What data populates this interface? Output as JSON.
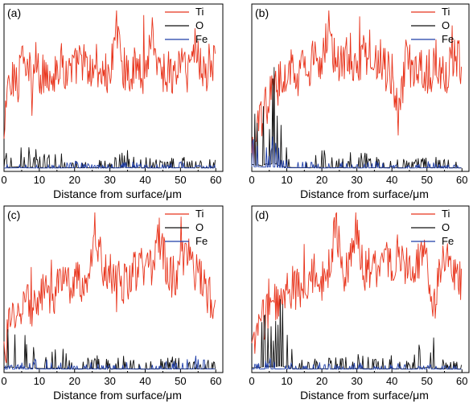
{
  "figure": {
    "panels": [
      {
        "label": "(a)"
      },
      {
        "label": "(b)"
      },
      {
        "label": "(c)"
      },
      {
        "label": "(d)"
      }
    ]
  },
  "chart_data": [
    {
      "type": "line",
      "panel_label": "(a)",
      "xlabel": "Distance from surface/μm",
      "ylabel": "",
      "xlim": [
        0,
        62
      ],
      "xticks": [
        0,
        10,
        20,
        30,
        40,
        50,
        60
      ],
      "grid": false,
      "legend_position": "top-right",
      "series": [
        {
          "name": "Ti",
          "color": "#e8341c",
          "x": [
            0,
            1,
            2,
            3,
            4,
            5,
            6,
            7,
            8,
            9,
            10,
            12,
            14,
            16,
            18,
            20,
            22,
            24,
            26,
            28,
            30,
            32,
            34,
            36,
            38,
            40,
            42,
            44,
            46,
            48,
            50,
            52,
            54,
            56,
            58,
            60
          ],
          "values": [
            0.15,
            0.55,
            0.48,
            0.62,
            0.5,
            0.88,
            0.52,
            0.66,
            0.45,
            0.7,
            0.55,
            0.62,
            0.58,
            0.66,
            0.6,
            0.62,
            0.7,
            0.58,
            0.65,
            0.6,
            0.56,
            0.9,
            0.62,
            0.6,
            0.66,
            0.58,
            0.88,
            0.6,
            0.62,
            0.56,
            0.68,
            0.6,
            0.78,
            0.64,
            0.58,
            0.7
          ]
        },
        {
          "name": "O",
          "color": "#111111",
          "x": [
            0,
            2,
            4,
            6,
            8,
            10,
            15,
            20,
            25,
            30,
            35,
            40,
            45,
            50,
            55,
            60
          ],
          "values": [
            0.03,
            0.06,
            0.08,
            0.05,
            0.06,
            0.04,
            0.05,
            0.02,
            0.03,
            0.02,
            0.05,
            0.03,
            0.02,
            0.04,
            0.02,
            0.03
          ]
        },
        {
          "name": "Fe",
          "color": "#1f3ea8",
          "x": [
            0,
            5,
            10,
            15,
            20,
            25,
            30,
            35,
            40,
            45,
            50,
            55,
            60
          ],
          "values": [
            0.01,
            0.02,
            0.01,
            0.01,
            0.02,
            0.01,
            0.01,
            0.02,
            0.01,
            0.01,
            0.02,
            0.01,
            0.01
          ]
        }
      ]
    },
    {
      "type": "line",
      "panel_label": "(b)",
      "xlabel": "Distance from surface/μm",
      "ylabel": "",
      "xlim": [
        0,
        62
      ],
      "xticks": [
        0,
        10,
        20,
        30,
        40,
        50,
        60
      ],
      "grid": false,
      "legend_position": "top-right",
      "series": [
        {
          "name": "Ti",
          "color": "#e8341c",
          "x": [
            0,
            2,
            4,
            6,
            8,
            10,
            12,
            14,
            16,
            18,
            20,
            22,
            24,
            26,
            28,
            30,
            32,
            34,
            36,
            38,
            40,
            42,
            44,
            46,
            48,
            50,
            52,
            54,
            56,
            58,
            60
          ],
          "values": [
            0.05,
            0.25,
            0.4,
            0.48,
            0.55,
            0.6,
            0.62,
            0.66,
            0.58,
            0.7,
            0.62,
            0.95,
            0.62,
            0.66,
            0.72,
            0.6,
            0.74,
            0.64,
            0.7,
            0.62,
            0.6,
            0.3,
            0.68,
            0.62,
            0.66,
            0.58,
            0.7,
            0.62,
            0.6,
            0.74,
            0.62
          ]
        },
        {
          "name": "O",
          "color": "#111111",
          "x": [
            0,
            1,
            2,
            3,
            4,
            5,
            6,
            7,
            8,
            9,
            10,
            12,
            15,
            20,
            25,
            30,
            35,
            40,
            45,
            50,
            55,
            60
          ],
          "values": [
            0.25,
            0.18,
            0.2,
            0.14,
            0.28,
            0.22,
            0.3,
            0.26,
            0.15,
            0.1,
            0.05,
            0.04,
            0.03,
            0.05,
            0.03,
            0.05,
            0.03,
            0.04,
            0.02,
            0.04,
            0.03,
            0.02
          ]
        },
        {
          "name": "Fe",
          "color": "#1f3ea8",
          "x": [
            0,
            2,
            4,
            6,
            8,
            10,
            15,
            20,
            25,
            30,
            35,
            40,
            45,
            50,
            55,
            60
          ],
          "values": [
            0.08,
            0.1,
            0.06,
            0.09,
            0.05,
            0.02,
            0.02,
            0.01,
            0.02,
            0.01,
            0.02,
            0.01,
            0.01,
            0.02,
            0.01,
            0.01
          ]
        }
      ]
    },
    {
      "type": "line",
      "panel_label": "(c)",
      "xlabel": "Distance from surface/μm",
      "ylabel": "",
      "xlim": [
        0,
        62
      ],
      "xticks": [
        0,
        10,
        20,
        30,
        40,
        50,
        60
      ],
      "grid": false,
      "legend_position": "top-right",
      "series": [
        {
          "name": "Ti",
          "color": "#e8341c",
          "x": [
            0,
            2,
            4,
            6,
            8,
            10,
            12,
            14,
            16,
            18,
            20,
            22,
            24,
            26,
            28,
            30,
            32,
            34,
            36,
            38,
            40,
            42,
            44,
            46,
            48,
            50,
            52,
            54,
            56,
            58,
            60
          ],
          "values": [
            0.12,
            0.3,
            0.38,
            0.42,
            0.4,
            0.45,
            0.48,
            0.46,
            0.55,
            0.52,
            0.58,
            0.55,
            0.62,
            0.9,
            0.6,
            0.62,
            0.58,
            0.55,
            0.6,
            0.62,
            0.66,
            0.6,
            0.85,
            0.62,
            0.58,
            0.66,
            0.8,
            0.6,
            0.55,
            0.48,
            0.3
          ]
        },
        {
          "name": "O",
          "color": "#111111",
          "x": [
            0,
            2,
            4,
            6,
            8,
            10,
            12,
            15,
            20,
            25,
            30,
            35,
            40,
            45,
            50,
            55,
            60
          ],
          "values": [
            0.12,
            0.15,
            0.1,
            0.12,
            0.08,
            0.06,
            0.04,
            0.08,
            0.03,
            0.05,
            0.03,
            0.04,
            0.02,
            0.04,
            0.03,
            0.02,
            0.03
          ]
        },
        {
          "name": "Fe",
          "color": "#1f3ea8",
          "x": [
            0,
            5,
            10,
            15,
            20,
            25,
            30,
            35,
            40,
            45,
            50,
            55,
            60
          ],
          "values": [
            0.01,
            0.02,
            0.03,
            0.02,
            0.01,
            0.02,
            0.01,
            0.02,
            0.01,
            0.02,
            0.03,
            0.04,
            0.02
          ]
        }
      ]
    },
    {
      "type": "line",
      "panel_label": "(d)",
      "xlabel": "Distance from surface/μm",
      "ylabel": "",
      "xlim": [
        0,
        62
      ],
      "xticks": [
        0,
        10,
        20,
        30,
        40,
        50,
        60
      ],
      "grid": false,
      "legend_position": "top-right",
      "series": [
        {
          "name": "Ti",
          "color": "#e8341c",
          "x": [
            0,
            2,
            4,
            6,
            8,
            10,
            12,
            14,
            16,
            18,
            20,
            22,
            24,
            26,
            28,
            30,
            32,
            34,
            36,
            38,
            40,
            42,
            44,
            46,
            48,
            50,
            52,
            54,
            56,
            58,
            60
          ],
          "values": [
            0.1,
            0.25,
            0.35,
            0.45,
            0.4,
            0.48,
            0.52,
            0.5,
            0.58,
            0.62,
            0.55,
            0.65,
            0.95,
            0.6,
            0.7,
            0.88,
            0.62,
            0.66,
            0.6,
            0.7,
            0.62,
            0.78,
            0.66,
            0.6,
            0.7,
            0.68,
            0.4,
            0.62,
            0.72,
            0.58,
            0.55
          ]
        },
        {
          "name": "O",
          "color": "#111111",
          "x": [
            0,
            2,
            4,
            6,
            8,
            10,
            12,
            15,
            20,
            25,
            30,
            35,
            40,
            45,
            50,
            55,
            60
          ],
          "values": [
            0.1,
            0.12,
            0.18,
            0.14,
            0.22,
            0.12,
            0.04,
            0.03,
            0.04,
            0.03,
            0.05,
            0.03,
            0.04,
            0.02,
            0.12,
            0.03,
            0.02
          ]
        },
        {
          "name": "Fe",
          "color": "#1f3ea8",
          "x": [
            0,
            5,
            10,
            15,
            20,
            25,
            30,
            35,
            40,
            45,
            50,
            55,
            60
          ],
          "values": [
            0.02,
            0.03,
            0.02,
            0.01,
            0.02,
            0.01,
            0.02,
            0.01,
            0.02,
            0.01,
            0.02,
            0.01,
            0.01
          ]
        }
      ]
    }
  ]
}
